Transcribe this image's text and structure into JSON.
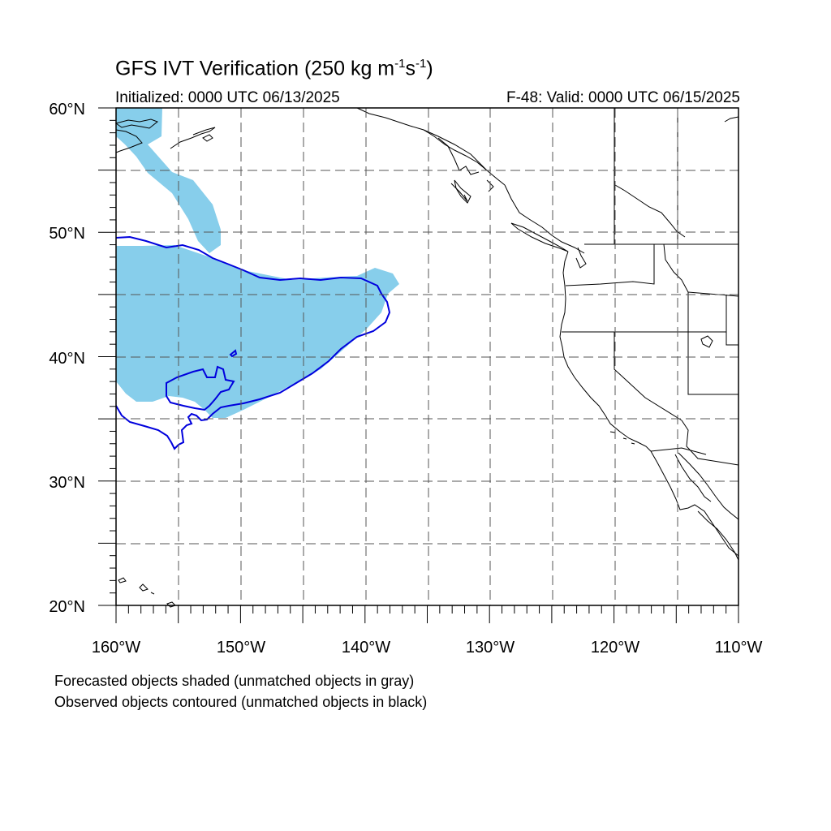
{
  "title": {
    "main": "GFS IVT Verification (250 kg m",
    "exp1": "-1",
    "mid": "s",
    "exp2": "-1",
    "end": ")"
  },
  "initialized": "Initialized: 0000 UTC 06/13/2025",
  "valid": "F-48: Valid: 0000 UTC 06/15/2025",
  "notes": [
    "Forecasted objects shaded (unmatched objects in gray)",
    "Observed objects contoured (unmatched objects in black)"
  ],
  "axes": {
    "lat_labels": [
      "60°N",
      "50°N",
      "40°N",
      "30°N",
      "20°N"
    ],
    "lon_labels": [
      "160°W",
      "150°W",
      "140°W",
      "130°W",
      "120°W",
      "110°W"
    ],
    "lat_range": [
      20,
      60
    ],
    "lon_range": [
      -160,
      -110
    ],
    "grid_every_deg": 5,
    "grid": true
  },
  "colors": {
    "forecast_fill": "#87CEEB",
    "observed_contour": "#0000DD",
    "coastline": "#000000"
  }
}
